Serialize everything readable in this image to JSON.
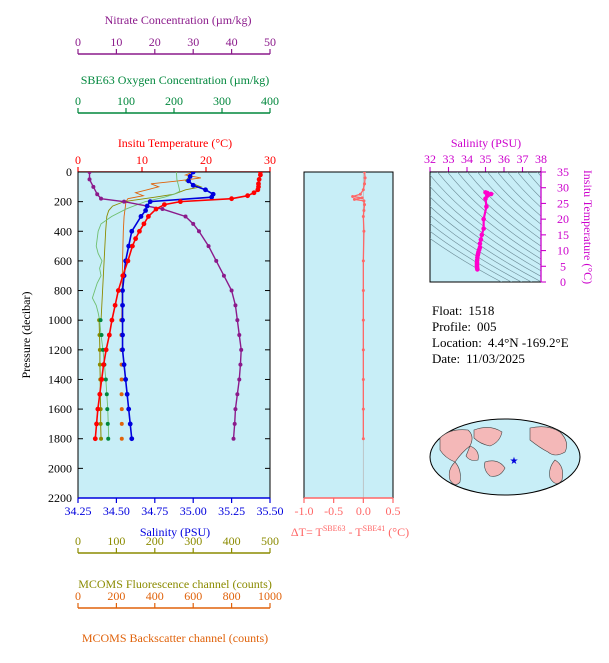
{
  "info": {
    "float_label": "Float:",
    "float_value": "1518",
    "profile_label": "Profile:",
    "profile_value": "005",
    "location_label": "Location:",
    "location_value": "4.4°N  -169.2°E",
    "date_label": "Date:",
    "date_value": "11/03/2025"
  },
  "colors": {
    "nitrate": "#8b1a8b",
    "oxygen": "#00873c",
    "temperature": "#ff0000",
    "salinity": "#0000dd",
    "fluorescence": "#8b8b00",
    "backscatter": "#e0620a",
    "panel_bg": "#c8eef7",
    "dt": "#ff6666",
    "ts": "#ff00cc"
  },
  "chart_data": [
    {
      "type": "line",
      "panel": "main",
      "ylabel": "Pressure (decibar)",
      "ylim": [
        2200,
        0
      ],
      "yticks": [
        0,
        200,
        400,
        600,
        800,
        1000,
        1200,
        1400,
        1600,
        1800,
        2000,
        2200
      ],
      "grid": false,
      "axes": {
        "nitrate": {
          "label": "Nitrate Concentration (µm/kg)",
          "range": [
            0,
            50
          ],
          "ticks": [
            0,
            10,
            20,
            30,
            40,
            50
          ]
        },
        "oxygen": {
          "label": "SBE63 Oxygen Concentration (µm/kg)",
          "range": [
            0,
            400
          ],
          "ticks": [
            0,
            100,
            200,
            300,
            400
          ]
        },
        "temperature": {
          "label": "Insitu Temperature (°C)",
          "range": [
            0,
            30
          ],
          "ticks": [
            0,
            10,
            20,
            30
          ]
        },
        "salinity": {
          "label": "Salinity (PSU)",
          "range": [
            34.25,
            35.5
          ],
          "ticks": [
            "34.25",
            "34.50",
            "34.75",
            "35.00",
            "35.25",
            "35.50"
          ]
        },
        "fluorescence": {
          "label": "MCOMS Fluorescence channel (counts)",
          "range": [
            0,
            500
          ],
          "ticks": [
            0,
            100,
            200,
            300,
            400,
            500
          ]
        },
        "backscatter": {
          "label": "MCOMS Backscatter channel (counts)",
          "range": [
            0,
            1000
          ],
          "ticks": [
            0,
            200,
            400,
            600,
            800,
            1000
          ]
        }
      },
      "series": {
        "temperature": [
          [
            0,
            28.5
          ],
          [
            20,
            28.5
          ],
          [
            50,
            28.3
          ],
          [
            80,
            28.2
          ],
          [
            100,
            28.2
          ],
          [
            120,
            28.1
          ],
          [
            140,
            27.5
          ],
          [
            160,
            26.5
          ],
          [
            180,
            24.0
          ],
          [
            200,
            16.0
          ],
          [
            220,
            13.5
          ],
          [
            250,
            12.2
          ],
          [
            300,
            11.0
          ],
          [
            350,
            10.3
          ],
          [
            400,
            9.6
          ],
          [
            450,
            9.0
          ],
          [
            500,
            8.5
          ],
          [
            600,
            7.8
          ],
          [
            700,
            7.0
          ],
          [
            800,
            6.3
          ],
          [
            900,
            5.8
          ],
          [
            1000,
            5.3
          ],
          [
            1100,
            4.9
          ],
          [
            1200,
            4.4
          ],
          [
            1300,
            4.0
          ],
          [
            1400,
            3.7
          ],
          [
            1500,
            3.4
          ],
          [
            1600,
            3.1
          ],
          [
            1700,
            2.9
          ],
          [
            1800,
            2.7
          ]
        ],
        "salinity": [
          [
            0,
            35.0
          ],
          [
            30,
            34.98
          ],
          [
            60,
            34.97
          ],
          [
            90,
            35.0
          ],
          [
            120,
            35.08
          ],
          [
            150,
            35.13
          ],
          [
            170,
            35.12
          ],
          [
            200,
            34.72
          ],
          [
            230,
            34.7
          ],
          [
            260,
            34.69
          ],
          [
            300,
            34.66
          ],
          [
            400,
            34.6
          ],
          [
            500,
            34.58
          ],
          [
            600,
            34.56
          ],
          [
            700,
            34.55
          ],
          [
            800,
            34.54
          ],
          [
            900,
            34.54
          ],
          [
            1000,
            34.54
          ],
          [
            1100,
            34.54
          ],
          [
            1200,
            34.54
          ],
          [
            1300,
            34.55
          ],
          [
            1400,
            34.56
          ],
          [
            1500,
            34.57
          ],
          [
            1600,
            34.58
          ],
          [
            1700,
            34.59
          ],
          [
            1800,
            34.6
          ]
        ],
        "nitrate": [
          [
            0,
            3.0
          ],
          [
            50,
            3.0
          ],
          [
            100,
            4.0
          ],
          [
            150,
            5.0
          ],
          [
            180,
            6.0
          ],
          [
            200,
            12.0
          ],
          [
            250,
            22.0
          ],
          [
            300,
            28.0
          ],
          [
            350,
            30.0
          ],
          [
            400,
            31.5
          ],
          [
            500,
            34.0
          ],
          [
            600,
            36.0
          ],
          [
            700,
            38.0
          ],
          [
            800,
            40.0
          ],
          [
            900,
            41.0
          ],
          [
            1000,
            41.5
          ],
          [
            1100,
            42.0
          ],
          [
            1200,
            42.5
          ],
          [
            1300,
            42.3
          ],
          [
            1400,
            42.0
          ],
          [
            1500,
            41.5
          ],
          [
            1600,
            41.0
          ],
          [
            1700,
            40.8
          ],
          [
            1800,
            40.5
          ]
        ],
        "oxygen": [
          [
            0,
            205
          ],
          [
            50,
            206
          ],
          [
            100,
            210
          ],
          [
            130,
            212
          ],
          [
            150,
            200
          ],
          [
            170,
            180
          ],
          [
            200,
            140
          ],
          [
            250,
            100
          ],
          [
            300,
            70
          ],
          [
            350,
            48
          ],
          [
            400,
            42
          ],
          [
            450,
            40
          ],
          [
            500,
            38
          ],
          [
            550,
            42
          ],
          [
            600,
            50
          ],
          [
            650,
            45
          ],
          [
            700,
            48
          ],
          [
            750,
            40
          ],
          [
            800,
            35
          ],
          [
            850,
            30
          ],
          [
            900,
            38
          ],
          [
            950,
            42
          ],
          [
            1000,
            45
          ],
          [
            1100,
            48
          ],
          [
            1200,
            52
          ],
          [
            1300,
            55
          ],
          [
            1400,
            58
          ],
          [
            1500,
            60
          ],
          [
            1600,
            62
          ],
          [
            1700,
            63
          ],
          [
            1800,
            64
          ]
        ],
        "oxygen_points": [
          [
            1000,
            47
          ],
          [
            1100,
            49
          ],
          [
            1200,
            52
          ],
          [
            1300,
            55
          ],
          [
            1400,
            58
          ],
          [
            1500,
            60
          ],
          [
            1600,
            61
          ],
          [
            1700,
            62
          ],
          [
            1800,
            63
          ]
        ],
        "fluorescence": [
          [
            1000,
            55
          ],
          [
            1100,
            56
          ],
          [
            1200,
            57
          ],
          [
            1300,
            57
          ],
          [
            1400,
            58
          ],
          [
            1500,
            58
          ],
          [
            1600,
            59
          ],
          [
            1700,
            59
          ],
          [
            1800,
            60
          ]
        ],
        "fluorescence_profile": [
          [
            0,
            300
          ],
          [
            30,
            290
          ],
          [
            60,
            280
          ],
          [
            80,
            300
          ],
          [
            100,
            320
          ],
          [
            120,
            280
          ],
          [
            150,
            250
          ],
          [
            170,
            200
          ],
          [
            200,
            120
          ],
          [
            230,
            90
          ],
          [
            260,
            80
          ],
          [
            300,
            75
          ],
          [
            400,
            72
          ],
          [
            500,
            70
          ],
          [
            600,
            68
          ],
          [
            700,
            66
          ],
          [
            800,
            64
          ],
          [
            900,
            62
          ],
          [
            1000,
            60
          ]
        ],
        "backscatter_points": [
          [
            1000,
            225
          ],
          [
            1100,
            226
          ],
          [
            1200,
            226
          ],
          [
            1300,
            227
          ],
          [
            1400,
            227
          ],
          [
            1500,
            227
          ],
          [
            1600,
            228
          ],
          [
            1700,
            228
          ],
          [
            1800,
            228
          ]
        ],
        "backscatter_profile": [
          [
            0,
            600
          ],
          [
            20,
            560
          ],
          [
            40,
            640
          ],
          [
            60,
            520
          ],
          [
            80,
            380
          ],
          [
            100,
            420
          ],
          [
            120,
            360
          ],
          [
            140,
            300
          ],
          [
            160,
            340
          ],
          [
            180,
            260
          ],
          [
            200,
            250
          ],
          [
            250,
            245
          ],
          [
            300,
            240
          ],
          [
            350,
            238
          ],
          [
            400,
            236
          ],
          [
            500,
            234
          ],
          [
            600,
            232
          ],
          [
            700,
            231
          ],
          [
            800,
            230
          ],
          [
            900,
            229
          ],
          [
            1000,
            228
          ]
        ]
      }
    },
    {
      "type": "line",
      "panel": "delta-t",
      "xlabel": "ΔT= T^SBE63 - T^SBE41 (°C)",
      "xlim": [
        -1.0,
        0.5
      ],
      "xticks": [
        "-1.0",
        "-0.5",
        "0.0",
        "0.5"
      ],
      "ylim": [
        2200,
        0
      ],
      "series": [
        [
          0,
          0.02
        ],
        [
          40,
          0.03
        ],
        [
          80,
          0.02
        ],
        [
          120,
          0.0
        ],
        [
          150,
          -0.05
        ],
        [
          165,
          -0.18
        ],
        [
          175,
          -0.02
        ],
        [
          185,
          -0.15
        ],
        [
          195,
          0.01
        ],
        [
          220,
          0.02
        ],
        [
          260,
          0.01
        ],
        [
          300,
          0.0
        ],
        [
          400,
          0.01
        ],
        [
          600,
          0.0
        ],
        [
          800,
          0.0
        ],
        [
          1000,
          0.0
        ],
        [
          1200,
          0.0
        ],
        [
          1400,
          0.0
        ],
        [
          1600,
          0.0
        ],
        [
          1800,
          0.0
        ]
      ]
    },
    {
      "type": "scatter",
      "panel": "ts-diagram",
      "title": "Salinity (PSU)",
      "ylabel": "Insitu Temperature (°C)",
      "xlim": [
        32,
        38
      ],
      "xticks": [
        32,
        33,
        34,
        35,
        36,
        37,
        38
      ],
      "ylim": [
        0,
        35
      ],
      "yticks": [
        0,
        5,
        10,
        15,
        20,
        25,
        30,
        35
      ],
      "points": [
        [
          35.0,
          28.5
        ],
        [
          35.1,
          28.3
        ],
        [
          35.3,
          28.0
        ],
        [
          35.1,
          27.5
        ],
        [
          35.0,
          26.5
        ],
        [
          35.05,
          24.0
        ],
        [
          34.9,
          20.0
        ],
        [
          34.9,
          17.0
        ],
        [
          34.8,
          15.0
        ],
        [
          34.75,
          13.5
        ],
        [
          34.7,
          12.2
        ],
        [
          34.7,
          11.0
        ],
        [
          34.66,
          10.3
        ],
        [
          34.62,
          9.6
        ],
        [
          34.6,
          9.0
        ],
        [
          34.58,
          8.5
        ],
        [
          34.56,
          7.8
        ],
        [
          34.55,
          7.0
        ],
        [
          34.54,
          6.3
        ],
        [
          34.54,
          5.8
        ],
        [
          34.54,
          5.3
        ],
        [
          34.54,
          4.9
        ],
        [
          34.55,
          4.4
        ],
        [
          34.56,
          4.0
        ]
      ]
    }
  ]
}
